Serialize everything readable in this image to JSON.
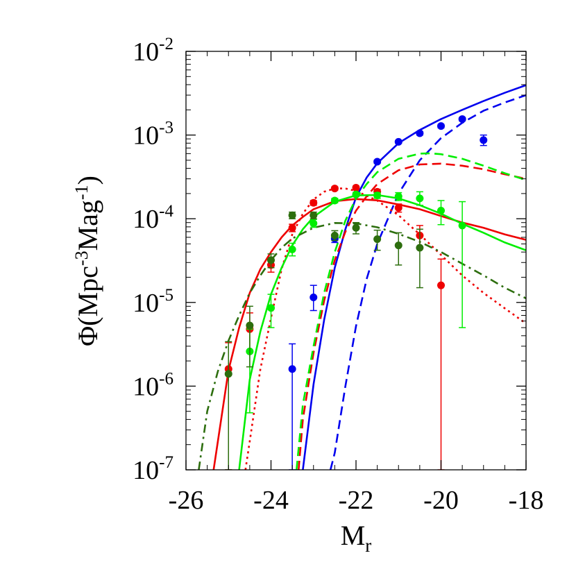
{
  "chart_data": {
    "type": "scatter",
    "title": "",
    "xlabel": {
      "main": "M",
      "sub": "r"
    },
    "ylabel": {
      "pre": "Φ(Mpc",
      "sup1": "-3",
      "mid": "Mag",
      "sup2": "-1",
      "post": ")"
    },
    "xlim": [
      -26,
      -18
    ],
    "ylim": [
      1e-07,
      0.01
    ],
    "yscale": "log",
    "grid": false,
    "legend": "none",
    "x_ticks": [
      -26,
      -24,
      -22,
      -20,
      -18
    ],
    "x_tick_labels": [
      "-26",
      "-24",
      "-22",
      "-20",
      "-18"
    ],
    "y_ticks": [
      1e-07,
      1e-06,
      1e-05,
      0.0001,
      0.001,
      0.01
    ],
    "y_tick_labels": [
      {
        "base": "10",
        "exp": "-7"
      },
      {
        "base": "10",
        "exp": "-6"
      },
      {
        "base": "10",
        "exp": "-5"
      },
      {
        "base": "10",
        "exp": "-4"
      },
      {
        "base": "10",
        "exp": "-3"
      },
      {
        "base": "10",
        "exp": "-2"
      }
    ],
    "series": [
      {
        "kind": "points",
        "color": "#0000ee",
        "points": [
          {
            "x": -23.5,
            "y": 1.6e-06,
            "lo": 1e-07,
            "hi": 3.2e-06
          },
          {
            "x": -23.0,
            "y": 1.15e-05,
            "lo": 8e-06,
            "hi": 1.6e-05
          },
          {
            "x": -22.5,
            "y": 5.8e-05,
            "lo": 5.2e-05,
            "hi": 6.4e-05
          },
          {
            "x": -22.0,
            "y": 0.000195,
            "lo": 0.000185,
            "hi": 0.000205
          },
          {
            "x": -21.5,
            "y": 0.00048,
            "lo": 0.00046,
            "hi": 0.0005
          },
          {
            "x": -21.0,
            "y": 0.00083,
            "lo": 0.0008,
            "hi": 0.00086
          },
          {
            "x": -20.5,
            "y": 0.00105,
            "lo": 0.001,
            "hi": 0.0011
          },
          {
            "x": -20.0,
            "y": 0.00128,
            "lo": 0.00122,
            "hi": 0.00134
          },
          {
            "x": -19.5,
            "y": 0.00155,
            "lo": 0.00148,
            "hi": 0.00162
          },
          {
            "x": -19.0,
            "y": 0.00087,
            "lo": 0.00075,
            "hi": 0.001
          }
        ]
      },
      {
        "kind": "points",
        "color": "#ee0000",
        "points": [
          {
            "x": -25.0,
            "y": 1.6e-06,
            "lo": 1e-07,
            "hi": 3.3e-06
          },
          {
            "x": -24.5,
            "y": 4.8e-06,
            "lo": 2.5e-06,
            "hi": 7.5e-06
          },
          {
            "x": -24.0,
            "y": 2.8e-05,
            "lo": 2.3e-05,
            "hi": 3.3e-05
          },
          {
            "x": -23.5,
            "y": 7.8e-05,
            "lo": 7e-05,
            "hi": 8.6e-05
          },
          {
            "x": -23.0,
            "y": 0.000155,
            "lo": 0.000145,
            "hi": 0.000165
          },
          {
            "x": -22.5,
            "y": 0.00023,
            "lo": 0.00022,
            "hi": 0.00024
          },
          {
            "x": -22.0,
            "y": 0.000235,
            "lo": 0.000225,
            "hi": 0.000245
          },
          {
            "x": -21.5,
            "y": 0.00021,
            "lo": 0.000195,
            "hi": 0.000225
          },
          {
            "x": -21.0,
            "y": 0.000135,
            "lo": 0.00012,
            "hi": 0.00015
          },
          {
            "x": -20.5,
            "y": 6.3e-05,
            "lo": 4.5e-05,
            "hi": 8.3e-05
          },
          {
            "x": -20.0,
            "y": 1.6e-05,
            "lo": 1e-07,
            "hi": 3.3e-05
          }
        ]
      },
      {
        "kind": "points",
        "color": "#00ee00",
        "points": [
          {
            "x": -24.5,
            "y": 2.6e-06,
            "lo": 4.8e-07,
            "hi": 4.8e-06
          },
          {
            "x": -24.0,
            "y": 8.6e-06,
            "lo": 5e-06,
            "hi": 1.25e-05
          },
          {
            "x": -23.5,
            "y": 4.3e-05,
            "lo": 3.6e-05,
            "hi": 5.1e-05
          },
          {
            "x": -23.0,
            "y": 8.8e-05,
            "lo": 7.9e-05,
            "hi": 9.8e-05
          },
          {
            "x": -22.5,
            "y": 0.000165,
            "lo": 0.000155,
            "hi": 0.000175
          },
          {
            "x": -22.0,
            "y": 0.000195,
            "lo": 0.000185,
            "hi": 0.000205
          },
          {
            "x": -21.5,
            "y": 0.00019,
            "lo": 0.000175,
            "hi": 0.000205
          },
          {
            "x": -21.0,
            "y": 0.000185,
            "lo": 0.000165,
            "hi": 0.000205
          },
          {
            "x": -20.5,
            "y": 0.000175,
            "lo": 0.000145,
            "hi": 0.00021
          },
          {
            "x": -20.0,
            "y": 0.000125,
            "lo": 8.5e-05,
            "hi": 0.000165
          },
          {
            "x": -19.5,
            "y": 8.3e-05,
            "lo": 5e-06,
            "hi": 0.00016
          }
        ]
      },
      {
        "kind": "points",
        "color": "#2d6e0e",
        "points": [
          {
            "x": -25.0,
            "y": 1.4e-06,
            "lo": 1e-07,
            "hi": 3.4e-06
          },
          {
            "x": -24.5,
            "y": 5.3e-06,
            "lo": 1.7e-06,
            "hi": 9e-06
          },
          {
            "x": -24.0,
            "y": 3.2e-05,
            "lo": 2.6e-05,
            "hi": 3.8e-05
          },
          {
            "x": -23.5,
            "y": 0.00011,
            "lo": 0.0001,
            "hi": 0.00012
          },
          {
            "x": -23.0,
            "y": 0.00011,
            "lo": 0.0001,
            "hi": 0.00012
          },
          {
            "x": -22.5,
            "y": 6.3e-05,
            "lo": 5.5e-05,
            "hi": 7.2e-05
          },
          {
            "x": -22.0,
            "y": 7.8e-05,
            "lo": 6.6e-05,
            "hi": 9e-05
          },
          {
            "x": -21.5,
            "y": 5.7e-05,
            "lo": 4.2e-05,
            "hi": 7.3e-05
          },
          {
            "x": -21.0,
            "y": 4.8e-05,
            "lo": 2.8e-05,
            "hi": 6.8e-05
          },
          {
            "x": -20.5,
            "y": 4.5e-05,
            "lo": 1.5e-05,
            "hi": 7.5e-05
          }
        ]
      },
      {
        "kind": "curve",
        "color": "#0000ee",
        "style": "solid",
        "x": [
          -23.25,
          -23.0,
          -22.75,
          -22.5,
          -22.25,
          -22.0,
          -21.75,
          -21.5,
          -21.0,
          -20.5,
          -20.0,
          -19.5,
          -19.0,
          -18.5,
          -18.0
        ],
        "y": [
          1e-07,
          1.05e-06,
          6.2e-06,
          2.6e-05,
          7.5e-05,
          0.00018,
          0.00031,
          0.00046,
          0.0008,
          0.00115,
          0.00155,
          0.002,
          0.00255,
          0.0032,
          0.00395
        ]
      },
      {
        "kind": "curve",
        "color": "#0000ee",
        "style": "dashed",
        "x": [
          -22.6,
          -22.5,
          -22.25,
          -22.0,
          -21.75,
          -21.5,
          -21.0,
          -20.5,
          -20.0,
          -19.5,
          -19.0,
          -18.5,
          -18.0
        ],
        "y": [
          1e-07,
          1.6e-07,
          1e-06,
          5.2e-06,
          1.9e-05,
          5e-05,
          0.0002,
          0.0005,
          0.00092,
          0.0014,
          0.00195,
          0.00245,
          0.003
        ]
      },
      {
        "kind": "curve",
        "color": "#ee0000",
        "style": "solid",
        "x": [
          -25.35,
          -25.0,
          -24.75,
          -24.5,
          -24.25,
          -24.0,
          -23.75,
          -23.5,
          -23.25,
          -23.0,
          -22.5,
          -22.0,
          -21.5,
          -21.0,
          -20.5,
          -20.0,
          -19.5,
          -19.0,
          -18.5,
          -18.0
        ],
        "y": [
          1e-07,
          1.55e-06,
          5e-06,
          1.3e-05,
          2.5e-05,
          4e-05,
          6e-05,
          8.3e-05,
          0.000105,
          0.00013,
          0.000162,
          0.000172,
          0.000166,
          0.000148,
          0.00013,
          0.000108,
          9e-05,
          7.8e-05,
          6.5e-05,
          5.6e-05
        ]
      },
      {
        "kind": "curve",
        "color": "#ee0000",
        "style": "dotted",
        "x": [
          -24.6,
          -24.5,
          -24.25,
          -24.0,
          -23.75,
          -23.5,
          -23.25,
          -23.0,
          -22.75,
          -22.5,
          -22.25,
          -22.0,
          -21.5,
          -21.0,
          -20.5,
          -20.0,
          -19.5,
          -19.0,
          -18.5,
          -18.0
        ],
        "y": [
          1e-07,
          2.2e-07,
          1.6e-06,
          6.5e-06,
          2.5e-05,
          6.5e-05,
          0.000115,
          0.00017,
          0.00021,
          0.00023,
          0.00023,
          0.000215,
          0.000165,
          0.00011,
          6.5e-05,
          3.7e-05,
          2.1e-05,
          1.3e-05,
          8.5e-06,
          5.6e-06
        ]
      },
      {
        "kind": "curve",
        "color": "#ee0000",
        "style": "dashed",
        "x": [
          -23.35,
          -23.25,
          -23.0,
          -22.75,
          -22.5,
          -22.25,
          -22.0,
          -21.75,
          -21.5,
          -21.0,
          -20.5,
          -20.0,
          -19.5,
          -19.0,
          -18.5,
          -18.0
        ],
        "y": [
          1e-07,
          4e-07,
          2.5e-06,
          1.05e-05,
          3.2e-05,
          7e-05,
          0.000125,
          0.000185,
          0.00026,
          0.00038,
          0.000445,
          0.000455,
          0.00043,
          0.00039,
          0.00034,
          0.0003
        ]
      },
      {
        "kind": "curve",
        "color": "#00ee00",
        "style": "solid",
        "x": [
          -24.75,
          -24.5,
          -24.25,
          -24.0,
          -23.75,
          -23.5,
          -23.25,
          -23.0,
          -22.5,
          -22.0,
          -21.5,
          -21.0,
          -20.5,
          -20.0,
          -19.5,
          -19.0,
          -18.5,
          -18.0
        ],
        "y": [
          1e-07,
          1.2e-06,
          4.5e-06,
          1.25e-05,
          2.6e-05,
          4.8e-05,
          7.5e-05,
          0.000105,
          0.00016,
          0.00019,
          0.000192,
          0.000175,
          0.000145,
          0.000115,
          8.7e-05,
          6.8e-05,
          5.2e-05,
          4.2e-05
        ]
      },
      {
        "kind": "curve",
        "color": "#00ee00",
        "style": "dashed",
        "x": [
          -23.4,
          -23.25,
          -23.0,
          -22.75,
          -22.5,
          -22.25,
          -22.0,
          -21.75,
          -21.5,
          -21.0,
          -20.5,
          -20.25,
          -20.0,
          -19.5,
          -19.0,
          -18.5,
          -18.0
        ],
        "y": [
          1e-07,
          6e-07,
          3e-06,
          1.3e-05,
          4e-05,
          9.5e-05,
          0.000175,
          0.00026,
          0.00036,
          0.00052,
          0.0006,
          0.000605,
          0.00059,
          0.00052,
          0.00043,
          0.00035,
          0.00029
        ]
      },
      {
        "kind": "curve",
        "color": "#2d6e0e",
        "style": "dashdot",
        "x": [
          -25.7,
          -25.5,
          -25.25,
          -25.0,
          -24.75,
          -24.5,
          -24.25,
          -24.0,
          -23.75,
          -23.5,
          -23.0,
          -22.5,
          -22.0,
          -21.5,
          -21.0,
          -20.5,
          -20.0,
          -19.5,
          -19.0,
          -18.5,
          -18.0
        ],
        "y": [
          1e-07,
          5e-07,
          1.5e-06,
          3.5e-06,
          7e-06,
          1.3e-05,
          2.1e-05,
          3.2e-05,
          4.5e-05,
          5.8e-05,
          7.8e-05,
          8.9e-05,
          8.8e-05,
          7.9e-05,
          6.6e-05,
          5.3e-05,
          4e-05,
          2.9e-05,
          2.1e-05,
          1.5e-05,
          1.12e-05
        ]
      }
    ]
  }
}
